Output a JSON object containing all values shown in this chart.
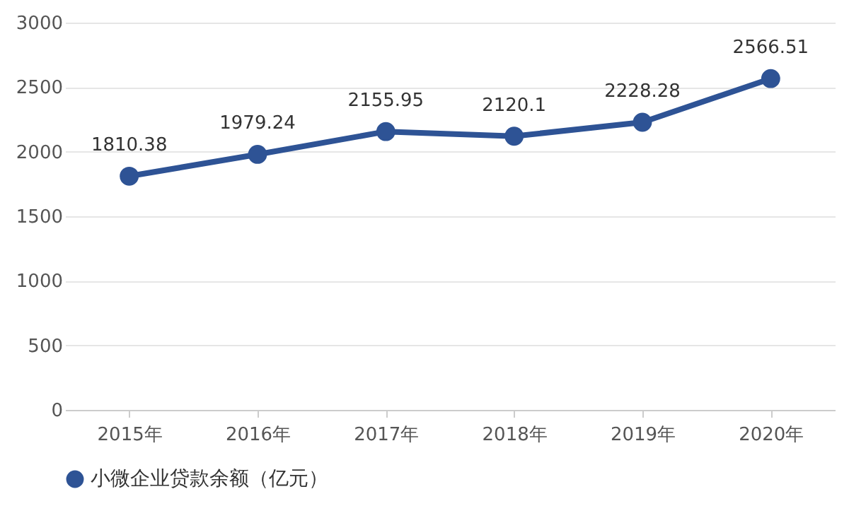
{
  "chart_data": {
    "type": "line",
    "categories": [
      "2015年",
      "2016年",
      "2017年",
      "2018年",
      "2019年",
      "2020年"
    ],
    "series": [
      {
        "name": "小微企业贷款余额（亿元）",
        "color": "#2e5395",
        "values": [
          1810.38,
          1979.24,
          2155.95,
          2120.1,
          2228.28,
          2566.51
        ]
      }
    ],
    "ylim": [
      0,
      3000
    ],
    "yticks": [
      0,
      500,
      1000,
      1500,
      2000,
      2500,
      3000
    ],
    "grid": "y",
    "legend": "bottom",
    "marker": "circle",
    "line_style": "solid",
    "data_labels": true
  }
}
